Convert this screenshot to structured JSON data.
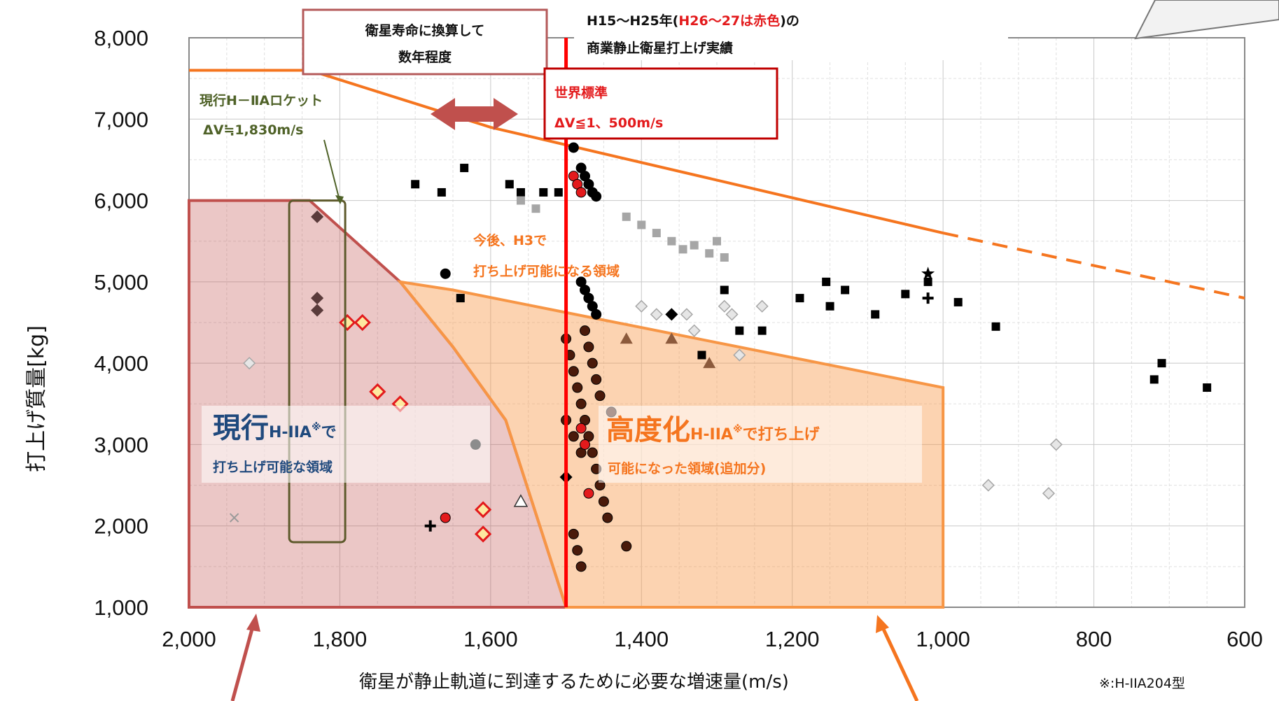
{
  "chart_data": {
    "type": "scatter",
    "xlabel": "衛星が静止軌道に到達するために必要な増速量(m/s)",
    "ylabel": "打上げ質量[kg]",
    "xlim": [
      2000,
      600
    ],
    "ylim": [
      1000,
      8000
    ],
    "x_reversed": true,
    "x_ticks": [
      "2,000",
      "1,800",
      "1,600",
      "1,400",
      "1,200",
      "1,000",
      "800",
      "600"
    ],
    "y_ticks": [
      "8,000",
      "7,000",
      "6,000",
      "5,000",
      "4,000",
      "3,000",
      "2,000",
      "1,000"
    ],
    "grid": true,
    "footnote": "※:H-IIA204型",
    "annotations": {
      "record_l1": "H15〜H25年(",
      "record_red": "H26〜27は赤色",
      "record_l1_end": ")の",
      "record_l2": "商業静止衛星打上げ実績",
      "lifetime_l1": "衛星寿命に換算して",
      "lifetime_l2": "数年程度",
      "world_l1": "世界標準",
      "world_l2": "ΔV≦1、500m/s",
      "current_rocket_l1": "現行H－ⅡAロケット",
      "current_rocket_l2": "ΔV≒1,830m/s",
      "h3_l1": "今後、H3で",
      "h3_l2": "打ち上げ可能になる領域",
      "current_big": "現行",
      "current_small": "H-IIA",
      "current_sup": "※",
      "current_de": "で",
      "current_l2": "打ち上げ可能な領域",
      "adv_big": "高度化",
      "adv_small": "H-IIA",
      "adv_sup": "※",
      "adv_rest": "で打ち上げ",
      "adv_l2": "可能になった領域(追加分)"
    },
    "regions": [
      {
        "id": "current",
        "color": "#c0504d",
        "points": [
          [
            2000,
            1000
          ],
          [
            2000,
            6000
          ],
          [
            1840,
            6000
          ],
          [
            1720,
            5000
          ],
          [
            1650,
            4200
          ],
          [
            1580,
            3300
          ],
          [
            1500,
            1000
          ]
        ]
      },
      {
        "id": "advanced",
        "color": "#f79646",
        "points": [
          [
            1720,
            5000
          ],
          [
            1650,
            4200
          ],
          [
            1580,
            3300
          ],
          [
            1500,
            1000
          ],
          [
            1000,
            1000
          ],
          [
            1000,
            3700
          ],
          [
            1650,
            4900
          ],
          [
            1720,
            5000
          ]
        ]
      }
    ],
    "h3_line": {
      "color": "#f5751f",
      "points": [
        [
          2000,
          7600
        ],
        [
          1840,
          7600
        ],
        [
          1600,
          6900
        ],
        [
          1000,
          5600
        ]
      ],
      "dashed_to": [
        [
          1000,
          5600
        ],
        [
          600,
          4800
        ]
      ]
    },
    "world_standard_x": 1500,
    "current_rocket_x": 1830,
    "series": [
      {
        "name": "black-square",
        "color": "#000000",
        "shape": "square",
        "x": [
          1700,
          1665,
          1635,
          1575,
          1560,
          1530,
          1510,
          1290,
          1240,
          1190,
          1155,
          1150,
          1130,
          1090,
          1050,
          1020,
          980,
          930,
          720,
          710,
          650,
          1640,
          1320,
          1270
        ],
        "y": [
          6200,
          6100,
          6400,
          6200,
          6100,
          6100,
          6100,
          4900,
          4400,
          4800,
          5000,
          4700,
          4900,
          4600,
          4850,
          5000,
          4750,
          4450,
          3800,
          4000,
          3700,
          4800,
          4100,
          4400
        ]
      },
      {
        "name": "black-circle",
        "color": "#000000",
        "shape": "circle",
        "x": [
          1490,
          1480,
          1475,
          1470,
          1465,
          1460,
          1480,
          1475,
          1470,
          1465,
          1460,
          1660,
          1620
        ],
        "y": [
          6650,
          6400,
          6300,
          6200,
          6100,
          6050,
          5000,
          4900,
          4800,
          4700,
          4600,
          5100,
          3000
        ]
      },
      {
        "name": "brown-circle",
        "color": "#4a1a0a",
        "shape": "circle",
        "x": [
          1500,
          1495,
          1490,
          1485,
          1480,
          1475,
          1470,
          1465,
          1460,
          1455,
          1450,
          1445,
          1490,
          1485,
          1480,
          1475,
          1470,
          1465,
          1460,
          1455,
          1440,
          1420,
          1500,
          1490,
          1480
        ],
        "y": [
          4300,
          4100,
          3900,
          3700,
          3500,
          3300,
          3100,
          2900,
          2700,
          2500,
          2300,
          2100,
          1900,
          1700,
          1500,
          4400,
          4200,
          4000,
          3800,
          3600,
          3400,
          1750,
          3300,
          3100,
          2900
        ]
      },
      {
        "name": "gray-square",
        "color": "#a6a6a6",
        "shape": "square",
        "x": [
          1560,
          1540,
          1420,
          1400,
          1380,
          1360,
          1345,
          1330,
          1310,
          1300,
          1290
        ],
        "y": [
          6000,
          5900,
          5800,
          5700,
          5600,
          5500,
          5400,
          5450,
          5350,
          5500,
          5300
        ]
      },
      {
        "name": "gray-diamond",
        "color": "#a6a6a6",
        "shape": "diamond",
        "x": [
          1920,
          1340,
          1330,
          1290,
          1280,
          1270,
          1240,
          1400,
          1380,
          850,
          860,
          940
        ],
        "y": [
          4000,
          4600,
          4400,
          4700,
          4600,
          4100,
          4700,
          4700,
          4600,
          3000,
          2400,
          2500
        ]
      },
      {
        "name": "brown-triangle",
        "color": "#8c5a3c",
        "shape": "triangle",
        "x": [
          1420,
          1360,
          1310
        ],
        "y": [
          4300,
          4300,
          4000
        ]
      },
      {
        "name": "black-diamond",
        "color": "#000000",
        "shape": "diamond",
        "x": [
          1360,
          1500
        ],
        "y": [
          4600,
          2600
        ]
      },
      {
        "name": "dark-diamond",
        "color": "#5a3b3b",
        "shape": "diamond",
        "x": [
          1830,
          1830,
          1830
        ],
        "y": [
          5800,
          4800,
          4650
        ]
      },
      {
        "name": "red-diamond",
        "color": "#e31a1c",
        "shape": "diamond-open",
        "x": [
          1790,
          1770,
          1750,
          1720,
          1610,
          1610
        ],
        "y": [
          4500,
          4500,
          3650,
          3500,
          2200,
          1900
        ]
      },
      {
        "name": "red-circle",
        "color": "#e31a1c",
        "shape": "circle",
        "x": [
          1490,
          1485,
          1480,
          1480,
          1475,
          1470,
          1660
        ],
        "y": [
          6300,
          6200,
          6100,
          3200,
          3000,
          2400,
          2100
        ]
      },
      {
        "name": "black-star",
        "color": "#000000",
        "shape": "star",
        "x": [
          1020
        ],
        "y": [
          5100
        ]
      },
      {
        "name": "black-cross",
        "color": "#000000",
        "shape": "plus",
        "x": [
          1680,
          1020
        ],
        "y": [
          2000,
          4800
        ]
      },
      {
        "name": "open-triangle",
        "color": "#333333",
        "shape": "triangle-open",
        "x": [
          1560
        ],
        "y": [
          2300
        ]
      },
      {
        "name": "gray-x",
        "color": "#999999",
        "shape": "x",
        "x": [
          1940
        ],
        "y": [
          2100
        ]
      }
    ]
  }
}
